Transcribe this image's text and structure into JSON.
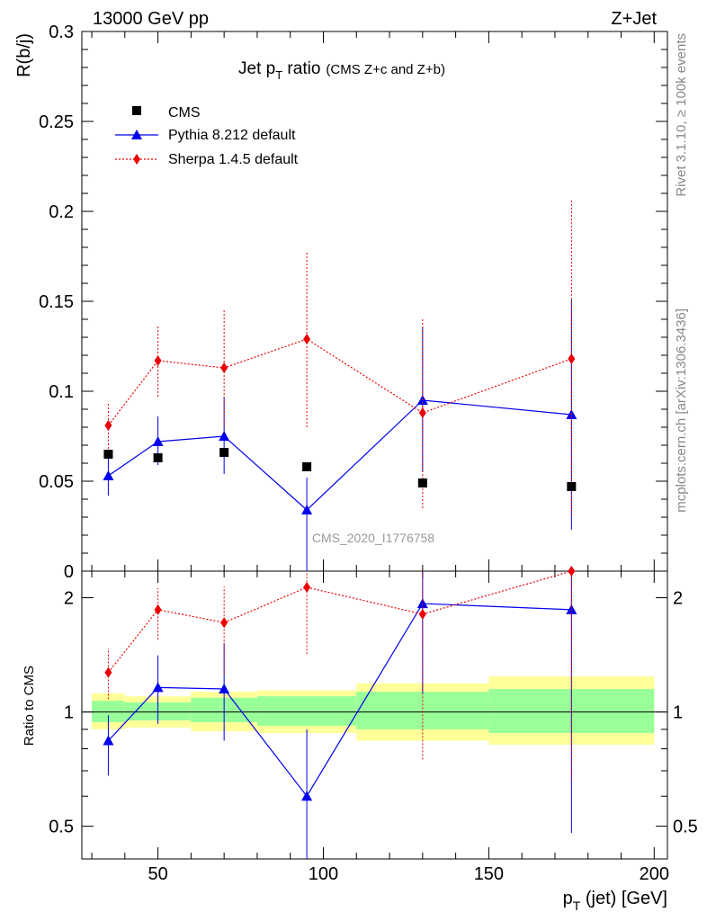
{
  "header": {
    "left": "13000 GeV pp",
    "right": "Z+Jet"
  },
  "side_labels": {
    "right_top": "Rivet 3.1.10, ≥ 100k events",
    "right_bottom": "mcplots.cern.ch [arXiv:1306.3436]"
  },
  "chart_data": {
    "type": "scatter",
    "title_main": "Jet p",
    "title_sub": "T",
    "title_word": " ratio",
    "title_extra": "(CMS  Z+c and Z+b)",
    "watermark": "CMS_2020_I1776758",
    "xlabel_main": "p",
    "xlabel_sub": "T",
    "xlabel_rest": " (jet) [GeV]",
    "ylabel_top": "R(b/j)",
    "ylabel_bottom": "Ratio to CMS",
    "xlim": [
      27,
      204
    ],
    "ylim_top": [
      0,
      0.3
    ],
    "ylim_bottom_log": [
      0.41,
      2.35
    ],
    "x_ticks_major": [
      "50",
      "100",
      "150",
      "200"
    ],
    "y_ticks_top": [
      "0",
      "0.05",
      "0.1",
      "0.15",
      "0.2",
      "0.25",
      "0.3"
    ],
    "y_ticks_bottom": [
      "0.5",
      "1",
      "2"
    ],
    "legend": [
      {
        "label": "CMS",
        "marker": "square",
        "color": "#000000"
      },
      {
        "label": "Pythia 8.212 default",
        "marker": "triangle",
        "color": "#0000ee"
      },
      {
        "label": "Sherpa 1.4.5 default",
        "marker": "diamond",
        "color": "#ee0000"
      }
    ],
    "bins": [
      [
        30,
        40
      ],
      [
        40,
        60
      ],
      [
        60,
        80
      ],
      [
        80,
        110
      ],
      [
        110,
        150
      ],
      [
        150,
        200
      ]
    ],
    "x": [
      35,
      50,
      70,
      95,
      130,
      175
    ],
    "series": [
      {
        "name": "CMS",
        "values": [
          0.065,
          0.063,
          0.066,
          0.058,
          0.049,
          0.047
        ]
      },
      {
        "name": "Pythia 8.212 default",
        "values": [
          0.053,
          0.072,
          0.075,
          0.034,
          0.095,
          0.087
        ],
        "err_lo": [
          0.042,
          0.059,
          0.054,
          0.0,
          0.055,
          0.023
        ],
        "err_hi": [
          0.064,
          0.086,
          0.097,
          0.052,
          0.136,
          0.151
        ]
      },
      {
        "name": "Sherpa 1.4.5 default",
        "values": [
          0.081,
          0.117,
          0.113,
          0.129,
          0.088,
          0.118
        ],
        "err_lo": [
          0.068,
          0.097,
          0.08,
          0.08,
          0.035,
          0.031
        ],
        "err_hi": [
          0.094,
          0.136,
          0.146,
          0.178,
          0.141,
          0.206
        ]
      }
    ],
    "ratio_series": [
      {
        "name": "Pythia 8.212 default",
        "values": [
          0.84,
          1.16,
          1.15,
          0.6,
          1.93,
          1.86
        ],
        "err_lo": [
          0.68,
          0.93,
          0.84,
          0.38,
          1.12,
          0.48
        ],
        "err_hi": [
          0.98,
          1.41,
          1.52,
          0.9,
          2.35,
          2.35
        ]
      },
      {
        "name": "Sherpa 1.4.5 default",
        "values": [
          1.27,
          1.86,
          1.72,
          2.13,
          1.81,
          2.35
        ],
        "err_lo": [
          1.08,
          1.55,
          1.26,
          1.42,
          0.75,
          0.66
        ],
        "err_hi": [
          1.47,
          2.12,
          2.14,
          2.35,
          2.35,
          2.35
        ]
      }
    ],
    "ratio_band_stat": [
      [
        0.94,
        1.07
      ],
      [
        0.95,
        1.06
      ],
      [
        0.94,
        1.09
      ],
      [
        0.92,
        1.1
      ],
      [
        0.9,
        1.13
      ],
      [
        0.88,
        1.15
      ]
    ],
    "ratio_band_total": [
      [
        0.9,
        1.12
      ],
      [
        0.91,
        1.1
      ],
      [
        0.89,
        1.13
      ],
      [
        0.88,
        1.14
      ],
      [
        0.84,
        1.19
      ],
      [
        0.82,
        1.24
      ]
    ]
  }
}
